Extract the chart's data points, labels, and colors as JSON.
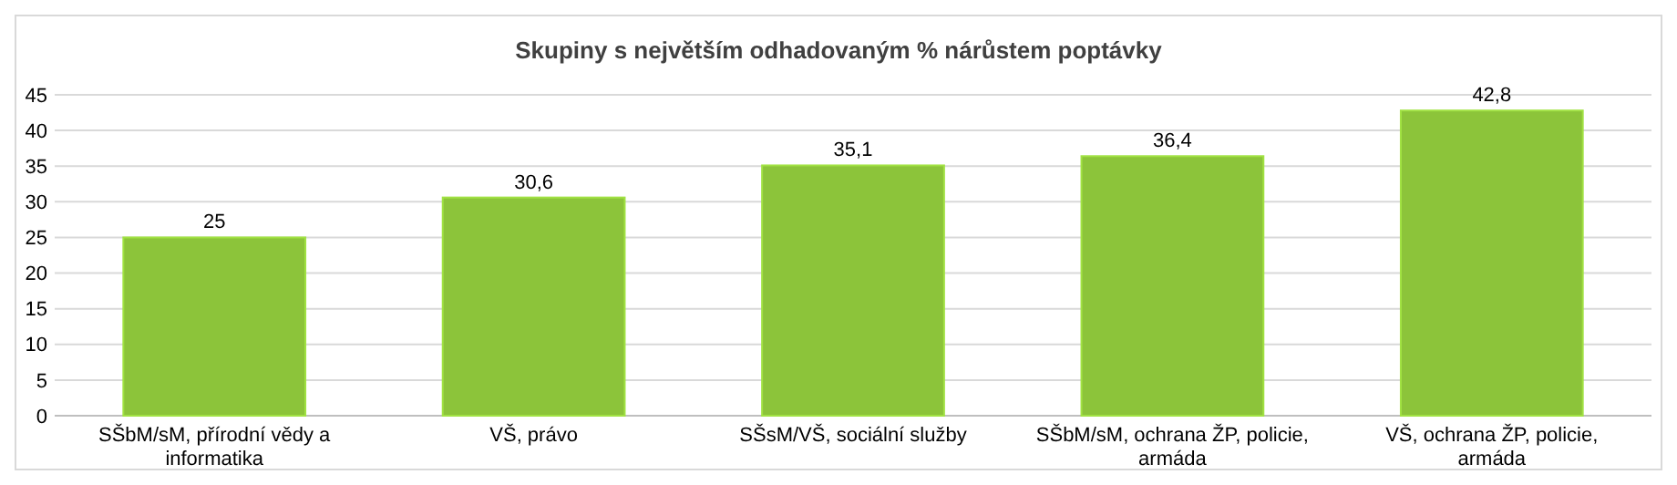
{
  "chart_data": {
    "type": "bar",
    "title": "Skupiny s největším odhadovaným % nárůstem poptávky",
    "categories": [
      "SŠbM/sM, přírodní vědy a informatika",
      "VŠ, právo",
      "SŠsM/VŠ, sociální služby",
      "SŠbM/sM, ochrana ŽP, policie, armáda",
      "VŠ, ochrana ŽP, policie, armáda"
    ],
    "values": [
      25,
      30.6,
      35.1,
      36.4,
      42.8
    ],
    "value_labels": [
      "25",
      "30,6",
      "35,1",
      "36,4",
      "42,8"
    ],
    "color": "#8cc43a",
    "ylim": [
      0,
      45
    ],
    "yticks": [
      0,
      5,
      10,
      15,
      20,
      25,
      30,
      35,
      40,
      45
    ],
    "grid": "y"
  }
}
